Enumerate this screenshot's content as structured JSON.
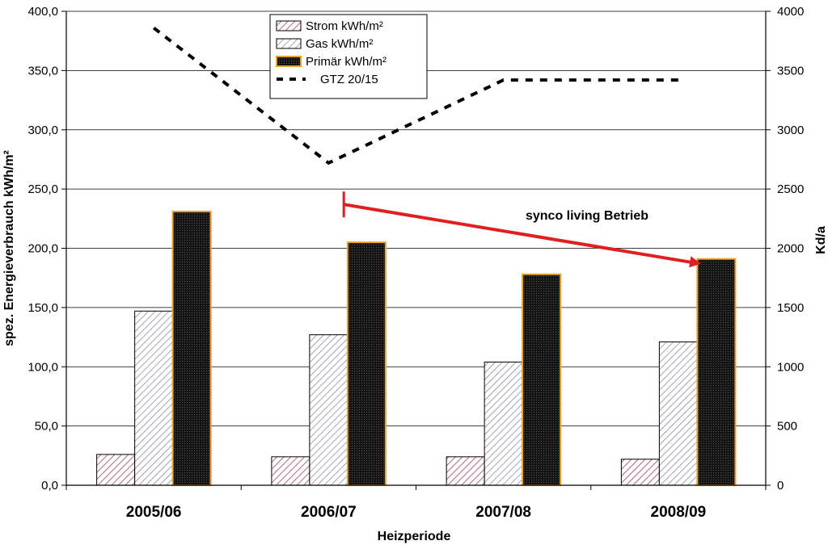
{
  "chart_data": {
    "type": "bar",
    "categories": [
      "2005/06",
      "2006/07",
      "2007/08",
      "2008/09"
    ],
    "series": [
      {
        "name": "Strom kWh/m²",
        "axis": "left",
        "values": [
          26,
          24,
          24,
          22
        ],
        "pattern": "diag-red"
      },
      {
        "name": "Gas kWh/m²",
        "axis": "left",
        "values": [
          147,
          127,
          104,
          121
        ],
        "pattern": "diag-gray"
      },
      {
        "name": "Primär kWh/m²",
        "axis": "left",
        "values": [
          231,
          205,
          178,
          191
        ],
        "pattern": "dots-dark",
        "border_color": "#e8a030"
      }
    ],
    "line_series": [
      {
        "name": "GTZ 20/15",
        "axis": "right",
        "type": "line",
        "style": "dashed",
        "values": [
          3860,
          2720,
          3420,
          3420
        ]
      }
    ],
    "xlabel": "Heizperiode",
    "ylabel": "spez. Energieverbrauch kWh/m²",
    "ylabel_right": "Kd/a",
    "ylim": [
      0,
      400
    ],
    "ylim_right": [
      0,
      4000
    ],
    "yticks": [
      "0,0",
      "50,0",
      "100,0",
      "150,0",
      "200,0",
      "250,0",
      "300,0",
      "350,0",
      "400,0"
    ],
    "yticks_right": [
      "0",
      "500",
      "1000",
      "1500",
      "2000",
      "2500",
      "3000",
      "3500",
      "4000"
    ],
    "grid": "horizontal",
    "legend": "top-center",
    "annotation": {
      "text": "synco living Betrieb",
      "color": "#e02020",
      "from": {
        "category": "2006/07",
        "value": 237
      },
      "to": {
        "category": "2008/09",
        "value": 187
      }
    }
  }
}
